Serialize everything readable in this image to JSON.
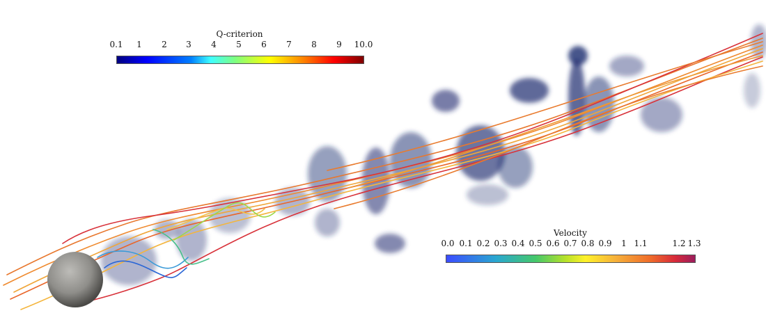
{
  "q_legend": {
    "title": "Q-criterion",
    "ticks": [
      "0.1",
      "1",
      "2",
      "3",
      "4",
      "5",
      "6",
      "7",
      "8",
      "9",
      "10.0"
    ]
  },
  "velocity_legend": {
    "title": "Velocity",
    "ticks": [
      "0.0",
      "0.1",
      "0.2",
      "0.3",
      "0.4",
      "0.5",
      "0.6",
      "0.7",
      "0.8",
      "0.9",
      "1",
      "1.1",
      "1.2",
      "1.3"
    ]
  }
}
